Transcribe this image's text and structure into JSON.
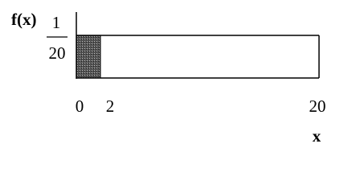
{
  "y_label": "f(x)",
  "density": {
    "numerator": "1",
    "denominator": "20"
  },
  "x_ticks": [
    "0",
    "2",
    "20"
  ],
  "x_label": "x"
}
